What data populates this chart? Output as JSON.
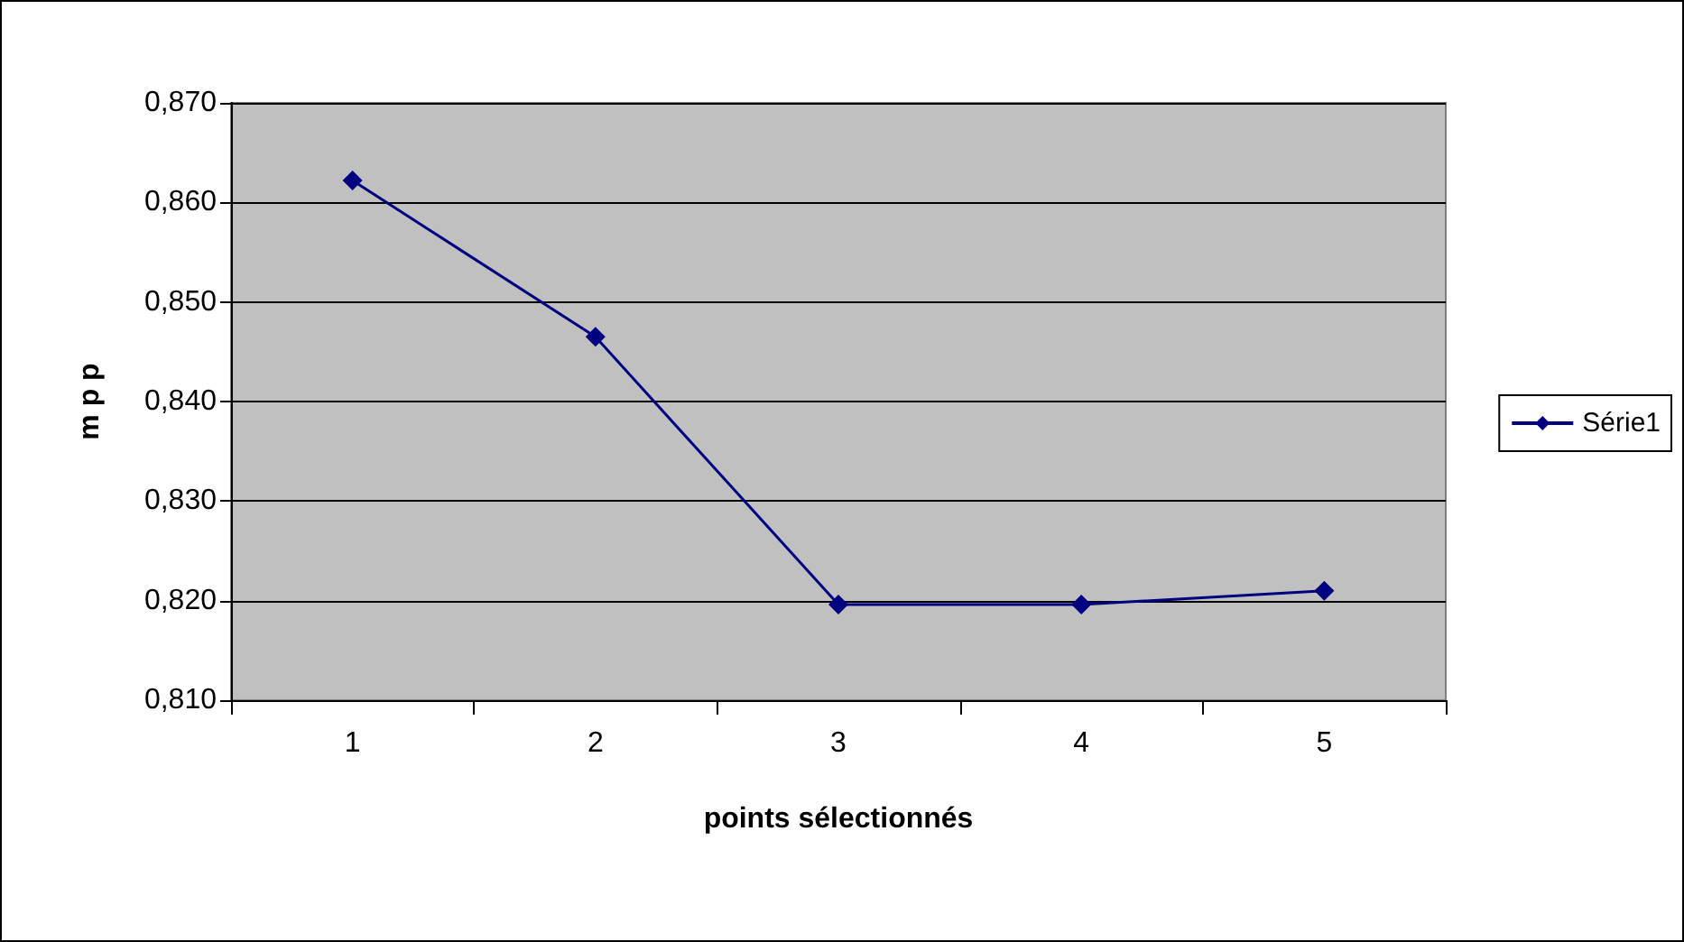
{
  "chart_data": {
    "type": "line",
    "xlabel": "points sélectionnés",
    "ylabel": "m p p",
    "categories": [
      "1",
      "2",
      "3",
      "4",
      "5"
    ],
    "series": [
      {
        "name": "Série1",
        "color": "#000080",
        "values": [
          0.8622,
          0.8465,
          0.8196,
          0.8196,
          0.821
        ]
      }
    ],
    "ylim": [
      0.81,
      0.87
    ],
    "yticks": [
      {
        "value": 0.81,
        "label": "0,810"
      },
      {
        "value": 0.82,
        "label": "0,820"
      },
      {
        "value": 0.83,
        "label": "0,830"
      },
      {
        "value": 0.84,
        "label": "0,840"
      },
      {
        "value": 0.85,
        "label": "0,850"
      },
      {
        "value": 0.86,
        "label": "0,860"
      },
      {
        "value": 0.87,
        "label": "0,870"
      }
    ],
    "grid": "y",
    "legend": "right",
    "marker": "diamond",
    "line_style": "solid"
  }
}
